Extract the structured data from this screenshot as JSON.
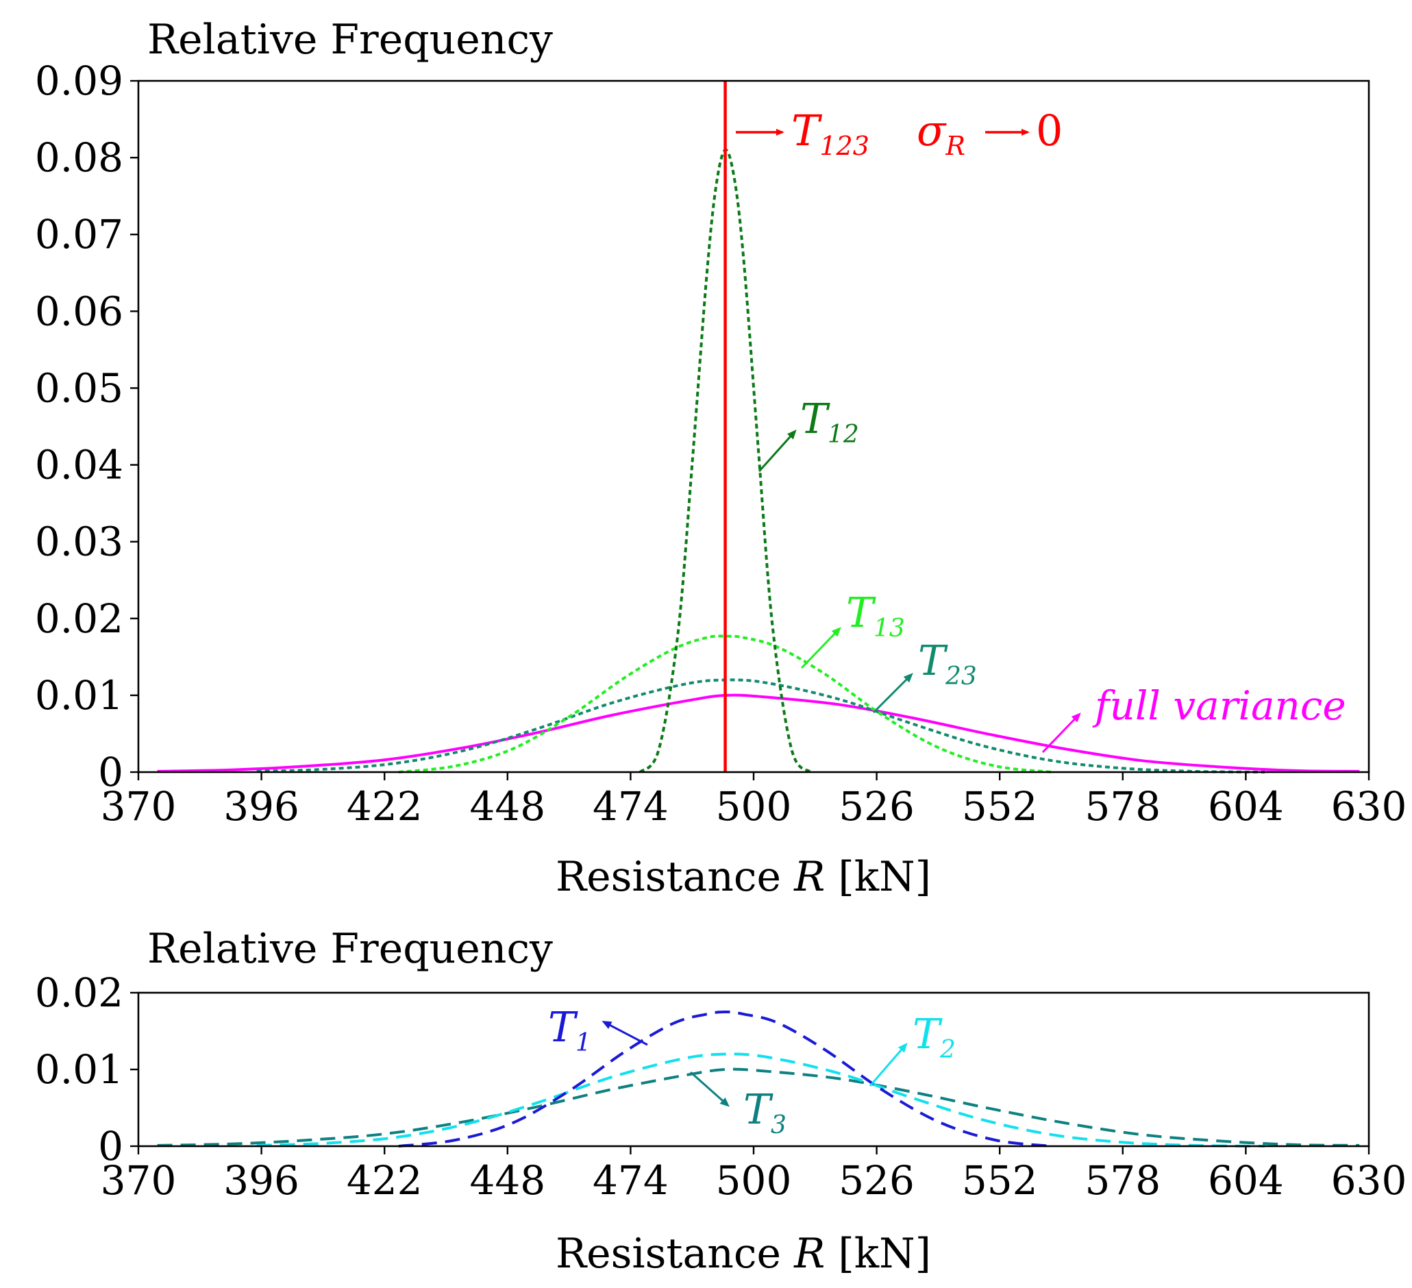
{
  "chart_data": [
    {
      "type": "line",
      "title": "",
      "ylabel": "Relative Frequency",
      "xlabel_prefix": "Resistance ",
      "xlabel_var": "R",
      "xlabel_unit": " [kN]",
      "xlim": [
        370,
        630
      ],
      "ylim": [
        0,
        0.09
      ],
      "x_ticks": [
        "370",
        "396",
        "422",
        "448",
        "474",
        "500",
        "526",
        "552",
        "578",
        "604",
        "630"
      ],
      "y_ticks": [
        "0",
        "0.01",
        "0.02",
        "0.03",
        "0.04",
        "0.05",
        "0.06",
        "0.07",
        "0.08",
        "0.09"
      ],
      "grid": false,
      "series": [
        {
          "name": "full variance",
          "label_main": "full variance",
          "label_sub": "",
          "color": "#ff00ff",
          "style": "solid",
          "x": [
            374,
            390,
            406,
            422,
            438,
            454,
            470,
            486,
            494,
            502,
            518,
            534,
            550,
            566,
            582,
            598,
            614,
            628
          ],
          "values": [
            0.0001,
            0.0003,
            0.0008,
            0.0016,
            0.0031,
            0.0051,
            0.0074,
            0.0093,
            0.01,
            0.0098,
            0.0088,
            0.007,
            0.0049,
            0.003,
            0.0015,
            0.0007,
            0.0002,
            0.0001
          ]
        },
        {
          "name": "T23",
          "label_main": "T",
          "label_sub": "23",
          "color": "#128a6e",
          "style": "dotted",
          "x": [
            395,
            410,
            425,
            440,
            455,
            470,
            485,
            494,
            503,
            518,
            533,
            548,
            563,
            578,
            593,
            608
          ],
          "values": [
            0.0001,
            0.0004,
            0.0012,
            0.003,
            0.0058,
            0.009,
            0.0114,
            0.012,
            0.0116,
            0.0095,
            0.0064,
            0.0035,
            0.0015,
            0.0005,
            0.0001,
            0.0
          ]
        },
        {
          "name": "T13",
          "label_main": "T",
          "label_sub": "13",
          "color": "#22ee22",
          "style": "dotted",
          "x": [
            425,
            437,
            449,
            461,
            473,
            483,
            490,
            494,
            498,
            505,
            515,
            527,
            539,
            551,
            563
          ],
          "values": [
            0.0,
            0.0008,
            0.003,
            0.0072,
            0.0124,
            0.016,
            0.0175,
            0.0177,
            0.0175,
            0.0163,
            0.0128,
            0.0075,
            0.0032,
            0.0008,
            0.0
          ]
        },
        {
          "name": "T12",
          "label_main": "T",
          "label_sub": "12",
          "color": "#0c7a17",
          "style": "dotted",
          "x": [
            476,
            480,
            484,
            487,
            490,
            492,
            494,
            496,
            498,
            501,
            504,
            508,
            512
          ],
          "values": [
            0.0,
            0.003,
            0.018,
            0.04,
            0.064,
            0.076,
            0.081,
            0.077,
            0.066,
            0.042,
            0.019,
            0.003,
            0.0
          ]
        }
      ],
      "vertical_line": {
        "name": "T123",
        "x": 494,
        "color": "#ff0000"
      },
      "annotations": {
        "t123_main": "T",
        "t123_sub": "123",
        "sigma_main": "σ",
        "sigma_sub": "R",
        "sigma_value": "0"
      }
    },
    {
      "type": "line",
      "title": "",
      "ylabel": "Relative Frequency",
      "xlabel_prefix": "Resistance ",
      "xlabel_var": "R",
      "xlabel_unit": " [kN]",
      "xlim": [
        370,
        630
      ],
      "ylim": [
        0,
        0.02
      ],
      "x_ticks": [
        "370",
        "396",
        "422",
        "448",
        "474",
        "500",
        "526",
        "552",
        "578",
        "604",
        "630"
      ],
      "y_ticks": [
        "0",
        "0.01",
        "0.02"
      ],
      "grid": false,
      "series": [
        {
          "name": "T3",
          "label_main": "T",
          "label_sub": "3",
          "color": "#0f8080",
          "style": "dashed",
          "x": [
            374,
            390,
            406,
            422,
            438,
            454,
            470,
            486,
            494,
            502,
            518,
            534,
            550,
            566,
            582,
            598,
            614,
            628
          ],
          "values": [
            0.0001,
            0.0003,
            0.0008,
            0.0016,
            0.0031,
            0.0051,
            0.0074,
            0.0093,
            0.01,
            0.0098,
            0.0088,
            0.007,
            0.0049,
            0.003,
            0.0015,
            0.0007,
            0.0002,
            0.0001
          ]
        },
        {
          "name": "T2",
          "label_main": "T",
          "label_sub": "2",
          "color": "#11e0ee",
          "style": "dashed",
          "x": [
            395,
            410,
            425,
            440,
            455,
            470,
            485,
            494,
            503,
            518,
            533,
            548,
            563,
            578,
            593,
            608
          ],
          "values": [
            0.0001,
            0.0004,
            0.0012,
            0.003,
            0.0058,
            0.009,
            0.0114,
            0.012,
            0.0116,
            0.0095,
            0.0064,
            0.0035,
            0.0015,
            0.0005,
            0.0001,
            0.0
          ]
        },
        {
          "name": "T1",
          "label_main": "T",
          "label_sub": "1",
          "color": "#1a1ad6",
          "style": "dashed",
          "x": [
            425,
            437,
            449,
            461,
            473,
            483,
            490,
            494,
            498,
            505,
            515,
            527,
            539,
            551,
            563
          ],
          "values": [
            0.0,
            0.0008,
            0.003,
            0.0072,
            0.0124,
            0.016,
            0.0172,
            0.0175,
            0.0172,
            0.0161,
            0.0126,
            0.0074,
            0.0032,
            0.0008,
            0.0
          ]
        }
      ]
    }
  ]
}
